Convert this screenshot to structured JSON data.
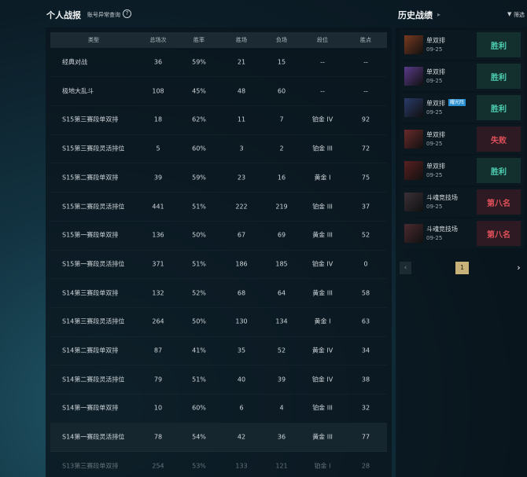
{
  "stats": {
    "title": "个人战报",
    "link": "账号异常查询",
    "help": "?",
    "columns": [
      "类型",
      "总场次",
      "胜率",
      "胜场",
      "负场",
      "段位",
      "胜点"
    ],
    "rows": [
      [
        "经典对战",
        "36",
        "59%",
        "21",
        "15",
        "--",
        "--"
      ],
      [
        "极地大乱斗",
        "108",
        "45%",
        "48",
        "60",
        "--",
        "--"
      ],
      [
        "S15第三赛段单双排",
        "18",
        "62%",
        "11",
        "7",
        "铂金 IV",
        "92"
      ],
      [
        "S15第三赛段灵活排位",
        "5",
        "60%",
        "3",
        "2",
        "铂金 III",
        "72"
      ],
      [
        "S15第二赛段单双排",
        "39",
        "59%",
        "23",
        "16",
        "黄金 I",
        "75"
      ],
      [
        "S15第二赛段灵活排位",
        "441",
        "51%",
        "222",
        "219",
        "铂金 III",
        "37"
      ],
      [
        "S15第一赛段单双排",
        "136",
        "50%",
        "67",
        "69",
        "黄金 III",
        "52"
      ],
      [
        "S15第一赛段灵活排位",
        "371",
        "51%",
        "186",
        "185",
        "铂金 IV",
        "0"
      ],
      [
        "S14第三赛段单双排",
        "132",
        "52%",
        "68",
        "64",
        "黄金 III",
        "58"
      ],
      [
        "S14第三赛段灵活排位",
        "264",
        "50%",
        "130",
        "134",
        "黄金 I",
        "63"
      ],
      [
        "S14第二赛段单双排",
        "87",
        "41%",
        "35",
        "52",
        "黄金 IV",
        "34"
      ],
      [
        "S14第二赛段灵活排位",
        "79",
        "51%",
        "40",
        "39",
        "铂金 IV",
        "38"
      ],
      [
        "S14第一赛段单双排",
        "10",
        "60%",
        "6",
        "4",
        "铂金 III",
        "32"
      ],
      [
        "S14第一赛段灵活排位",
        "78",
        "54%",
        "42",
        "36",
        "黄金 III",
        "77"
      ],
      [
        "S13第三赛段单双排",
        "254",
        "53%",
        "133",
        "121",
        "铂金 I",
        "28"
      ]
    ]
  },
  "history": {
    "title": "历史战绩",
    "filter": "筛选",
    "page": "1",
    "matches": [
      {
        "mode": "单双排",
        "date": "09-25",
        "result": "胜利",
        "win": true
      },
      {
        "mode": "单双排",
        "date": "09-25",
        "result": "胜利",
        "win": true
      },
      {
        "mode": "单双排",
        "badge": "耀光阵",
        "date": "09-25",
        "result": "胜利",
        "win": true
      },
      {
        "mode": "单双排",
        "date": "09-25",
        "result": "失败",
        "win": false
      },
      {
        "mode": "单双排",
        "date": "09-25",
        "result": "胜利",
        "win": true
      },
      {
        "mode": "斗魂竞技场",
        "date": "09-25",
        "result": "第八名",
        "win": false
      },
      {
        "mode": "斗魂竞技场",
        "date": "09-25",
        "result": "第八名",
        "win": false
      }
    ]
  }
}
